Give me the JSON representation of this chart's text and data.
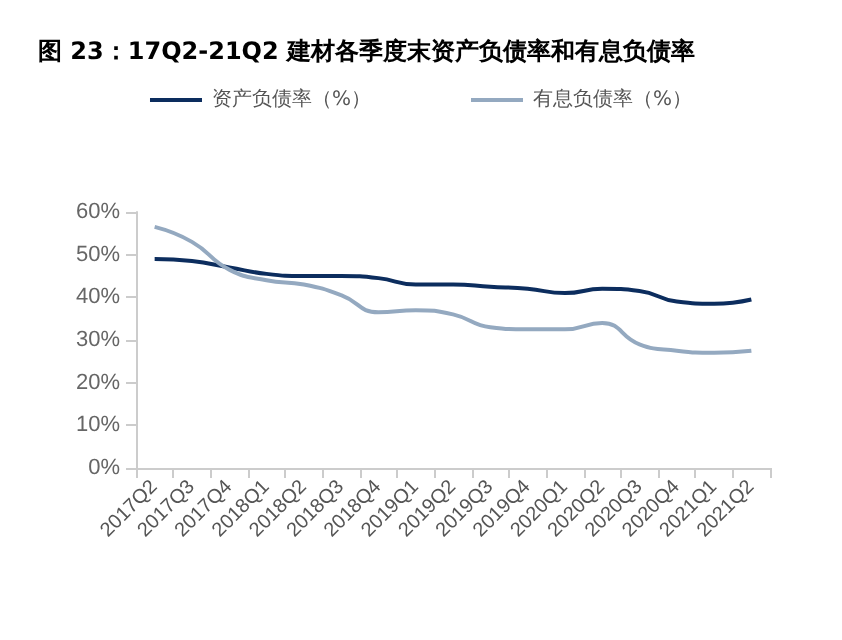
{
  "chart_data": {
    "type": "line",
    "title": "图 23：17Q2-21Q2 建材各季度末资产负债率和有息负债率",
    "categories": [
      "2017Q2",
      "2017Q3",
      "2017Q4",
      "2018Q1",
      "2018Q2",
      "2018Q3",
      "2018Q4",
      "2019Q1",
      "2019Q2",
      "2019Q3",
      "2019Q4",
      "2020Q1",
      "2020Q2",
      "2020Q3",
      "2020Q4",
      "2021Q1",
      "2021Q2"
    ],
    "series": [
      {
        "name": "资产负债率（%）",
        "color": "#0c2d5e",
        "values": [
          49,
          48.5,
          47,
          45.5,
          45,
          45,
          44.5,
          43,
          43,
          42.5,
          42,
          41,
          42,
          41.5,
          39,
          38.5,
          39.5
        ]
      },
      {
        "name": "有息负债率（%）",
        "color": "#94a9c0",
        "values": [
          56.5,
          53,
          46.5,
          44,
          43,
          40.5,
          36.5,
          37,
          36,
          33,
          32.5,
          32.5,
          34,
          29,
          27.5,
          27,
          27.5
        ]
      }
    ],
    "ylim": [
      0,
      60
    ],
    "yticks": [
      {
        "value": 0,
        "label": "0%"
      },
      {
        "value": 10,
        "label": "10%"
      },
      {
        "value": 20,
        "label": "20%"
      },
      {
        "value": 30,
        "label": "30%"
      },
      {
        "value": 40,
        "label": "40%"
      },
      {
        "value": 50,
        "label": "50%"
      },
      {
        "value": 60,
        "label": "60%"
      }
    ],
    "grid": false,
    "legend": "top",
    "marker": "none",
    "line_style": "solid"
  }
}
